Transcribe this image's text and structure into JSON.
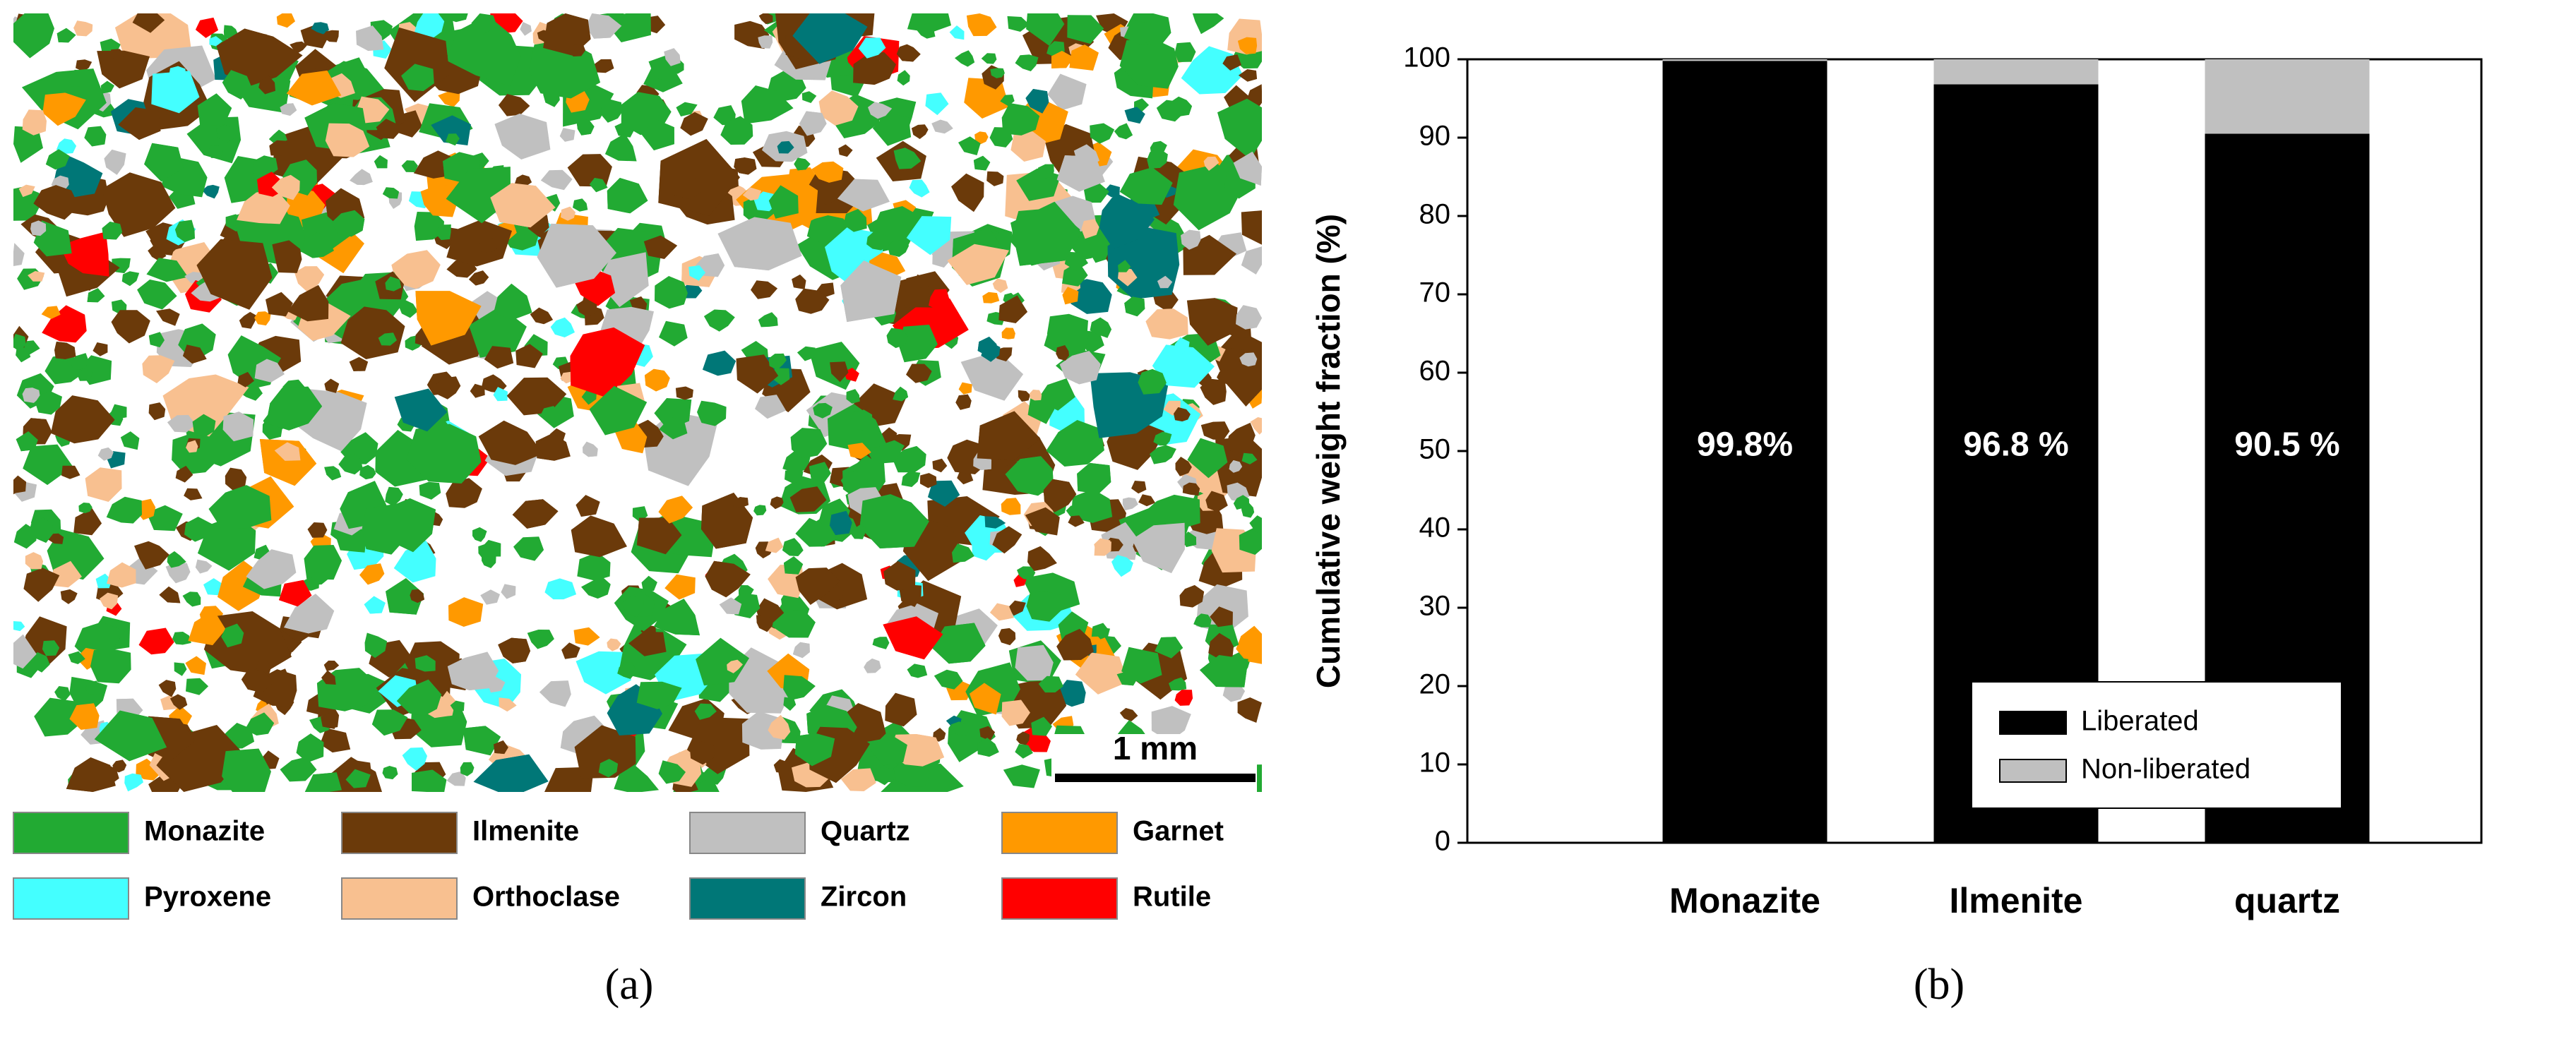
{
  "panel_a": {
    "caption": "(a)",
    "scale_bar": "1 mm",
    "legend": [
      {
        "name": "Monazite",
        "color": "#22aa33"
      },
      {
        "name": "Ilmenite",
        "color": "#6b3a0a"
      },
      {
        "name": "Quartz",
        "color": "#c0c0c0"
      },
      {
        "name": "Garnet",
        "color": "#ff9900"
      },
      {
        "name": "Pyroxene",
        "color": "#44ffff"
      },
      {
        "name": "Orthoclase",
        "color": "#f8c090"
      },
      {
        "name": "Zircon",
        "color": "#007777"
      },
      {
        "name": "Rutile",
        "color": "#ff0000"
      }
    ]
  },
  "chart_data": {
    "type": "stacked_bar",
    "caption": "(b)",
    "y_label": "Cumulative weight fraction (%)",
    "categories": [
      "Monazite",
      "Ilmenite",
      "quartz"
    ],
    "series": [
      {
        "name": "Liberated",
        "color": "#000000",
        "values": [
          99.8,
          96.8,
          90.5
        ],
        "value_labels": [
          "99.8%",
          "96.8 %",
          "90.5 %"
        ]
      },
      {
        "name": "Non-liberated",
        "color": "#c0c0c0",
        "values": [
          0.2,
          3.2,
          9.5
        ]
      }
    ],
    "ylim": [
      0,
      100
    ],
    "yticks": [
      0,
      10,
      20,
      30,
      40,
      50,
      60,
      70,
      80,
      90,
      100
    ],
    "legend_position": "lower right"
  }
}
